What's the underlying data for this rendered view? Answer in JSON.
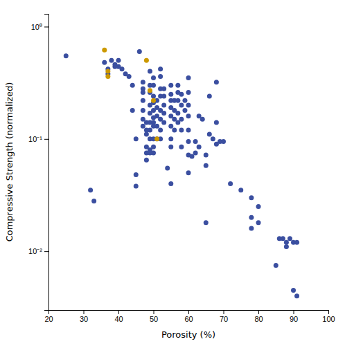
{
  "chart_data": {
    "type": "scatter",
    "xlabel": "Porosity (%)",
    "ylabel": "Compressive Strength (normalized)",
    "log": "y",
    "xlim": [
      20,
      100
    ],
    "ylim": [
      0.003,
      1.3
    ],
    "xticks": [
      20,
      30,
      40,
      50,
      60,
      70,
      80,
      90,
      100
    ],
    "yticks": [
      {
        "value": 0.01,
        "label": "10⁻²"
      },
      {
        "value": 0.1,
        "label": "10⁻¹"
      },
      {
        "value": 1.0,
        "label": "10⁰"
      }
    ],
    "series": [
      {
        "color": "#3b4fa0",
        "x": [
          25,
          32,
          33,
          36,
          37,
          37,
          38,
          39,
          39,
          40,
          40,
          41,
          42,
          43,
          44,
          44,
          45,
          45,
          45,
          46,
          47,
          47,
          47,
          47,
          47,
          47,
          47,
          48,
          48,
          48,
          48,
          48,
          48,
          49,
          49,
          49,
          49,
          49,
          49,
          49,
          49,
          49,
          49,
          50,
          50,
          50,
          50,
          50,
          50,
          50,
          50,
          50,
          50,
          50,
          51,
          51,
          51,
          51,
          51,
          52,
          52,
          52,
          52,
          52,
          52,
          52,
          52,
          53,
          53,
          53,
          53,
          53,
          54,
          55,
          55,
          55,
          55,
          55,
          55,
          55,
          55,
          55,
          56,
          56,
          56,
          56,
          57,
          57,
          57,
          57,
          57,
          58,
          58,
          58,
          58,
          58,
          59,
          59,
          60,
          60,
          60,
          60,
          60,
          60,
          60,
          60,
          61,
          62,
          62,
          63,
          63,
          64,
          65,
          65,
          65,
          66,
          66,
          67,
          68,
          68,
          68,
          69,
          70,
          72,
          75,
          78,
          78,
          78,
          80,
          80,
          85,
          86,
          87,
          88,
          88,
          89,
          90,
          90,
          91,
          91
        ],
        "values": [
          0.55,
          0.035,
          0.028,
          0.48,
          0.42,
          0.38,
          0.5,
          0.46,
          0.44,
          0.5,
          0.44,
          0.42,
          0.38,
          0.36,
          0.3,
          0.18,
          0.1,
          0.048,
          0.038,
          0.6,
          0.32,
          0.28,
          0.26,
          0.22,
          0.18,
          0.15,
          0.13,
          0.14,
          0.12,
          0.11,
          0.085,
          0.075,
          0.065,
          0.4,
          0.3,
          0.26,
          0.2,
          0.17,
          0.14,
          0.12,
          0.1,
          0.08,
          0.075,
          0.35,
          0.3,
          0.24,
          0.21,
          0.18,
          0.155,
          0.14,
          0.13,
          0.1,
          0.085,
          0.075,
          0.22,
          0.19,
          0.16,
          0.13,
          0.1,
          0.42,
          0.36,
          0.28,
          0.24,
          0.18,
          0.15,
          0.12,
          0.1,
          0.28,
          0.24,
          0.2,
          0.17,
          0.14,
          0.055,
          0.3,
          0.25,
          0.22,
          0.19,
          0.16,
          0.13,
          0.1,
          0.085,
          0.04,
          0.22,
          0.18,
          0.15,
          0.12,
          0.3,
          0.26,
          0.22,
          0.17,
          0.14,
          0.25,
          0.2,
          0.15,
          0.12,
          0.085,
          0.22,
          0.18,
          0.35,
          0.26,
          0.2,
          0.16,
          0.12,
          0.095,
          0.072,
          0.05,
          0.07,
          0.095,
          0.075,
          0.16,
          0.085,
          0.15,
          0.072,
          0.058,
          0.018,
          0.24,
          0.11,
          0.1,
          0.32,
          0.14,
          0.09,
          0.095,
          0.095,
          0.04,
          0.035,
          0.03,
          0.02,
          0.016,
          0.025,
          0.018,
          0.0075,
          0.013,
          0.013,
          0.012,
          0.011,
          0.013,
          0.012,
          0.0045,
          0.012,
          0.004
        ]
      },
      {
        "color": "#cc9900",
        "x": [
          36,
          37,
          37,
          48,
          49,
          50,
          51
        ],
        "values": [
          0.62,
          0.4,
          0.36,
          0.5,
          0.27,
          0.22,
          0.1
        ]
      }
    ]
  }
}
